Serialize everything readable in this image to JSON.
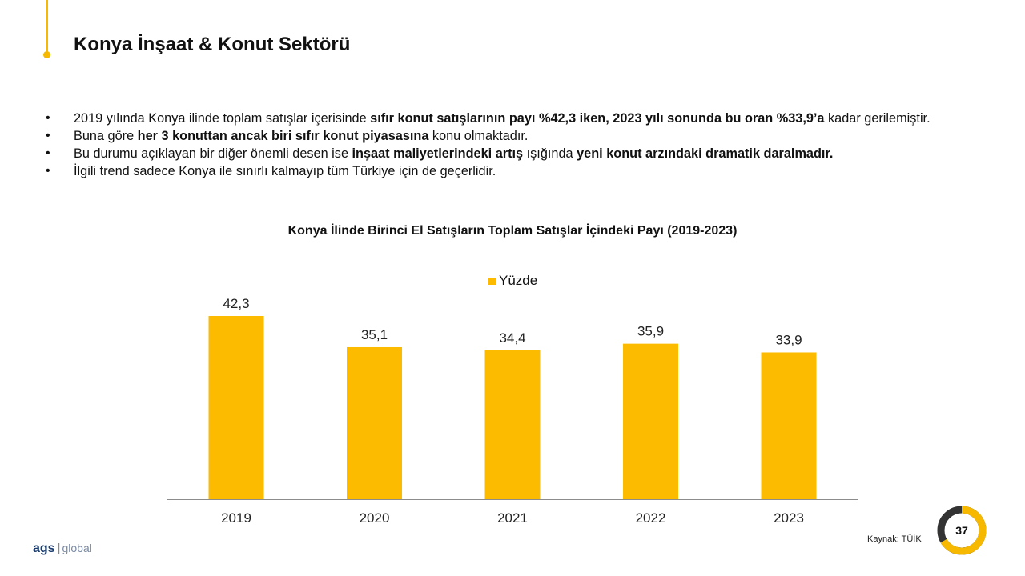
{
  "title": "Konya İnşaat & Konut Sektörü",
  "bullets": [
    [
      {
        "t": "2019 yılında Konya ilinde toplam satışlar içerisinde ",
        "b": false
      },
      {
        "t": "sıfır konut satışlarının payı %42,3 iken, 2023 yılı sonunda bu oran %33,9’a",
        "b": true
      },
      {
        "t": " kadar gerilemiştir.",
        "b": false
      }
    ],
    [
      {
        "t": "Buna göre ",
        "b": false
      },
      {
        "t": "her 3 konuttan ancak biri sıfır konut piyasasına",
        "b": true
      },
      {
        "t": " konu olmaktadır.",
        "b": false
      }
    ],
    [
      {
        "t": "Bu durumu açıklayan bir diğer önemli desen ise ",
        "b": false
      },
      {
        "t": "inşaat maliyetlerindeki artış",
        "b": true
      },
      {
        "t": " ışığında ",
        "b": false
      },
      {
        "t": "yeni konut arzındaki dramatik daralmadır.",
        "b": true
      }
    ],
    [
      {
        "t": "İlgili trend sadece Konya ile sınırlı kalmayıp tüm Türkiye için de geçerlidir.",
        "b": false
      }
    ]
  ],
  "chart_data": {
    "type": "bar",
    "title": "Konya İlinde Birinci El Satışların Toplam Satışlar İçindeki Payı (2019-2023)",
    "categories": [
      "2019",
      "2020",
      "2021",
      "2022",
      "2023"
    ],
    "series": [
      {
        "name": "Yüzde",
        "values": [
          42.3,
          35.1,
          34.4,
          35.9,
          33.9
        ],
        "labels": [
          "42,3",
          "35,1",
          "34,4",
          "35,9",
          "33,9"
        ]
      }
    ],
    "ylim": [
      0,
      50
    ],
    "grid": false,
    "legend": "top-center",
    "bar_color": "#fdbb00"
  },
  "source": "Kaynak: TÜİK",
  "page_number": "37",
  "logo": {
    "brand": "ags",
    "suffix": "global"
  },
  "colors": {
    "accent": "#f6b900",
    "bar": "#fdbb00",
    "badge_dark": "#333333"
  }
}
